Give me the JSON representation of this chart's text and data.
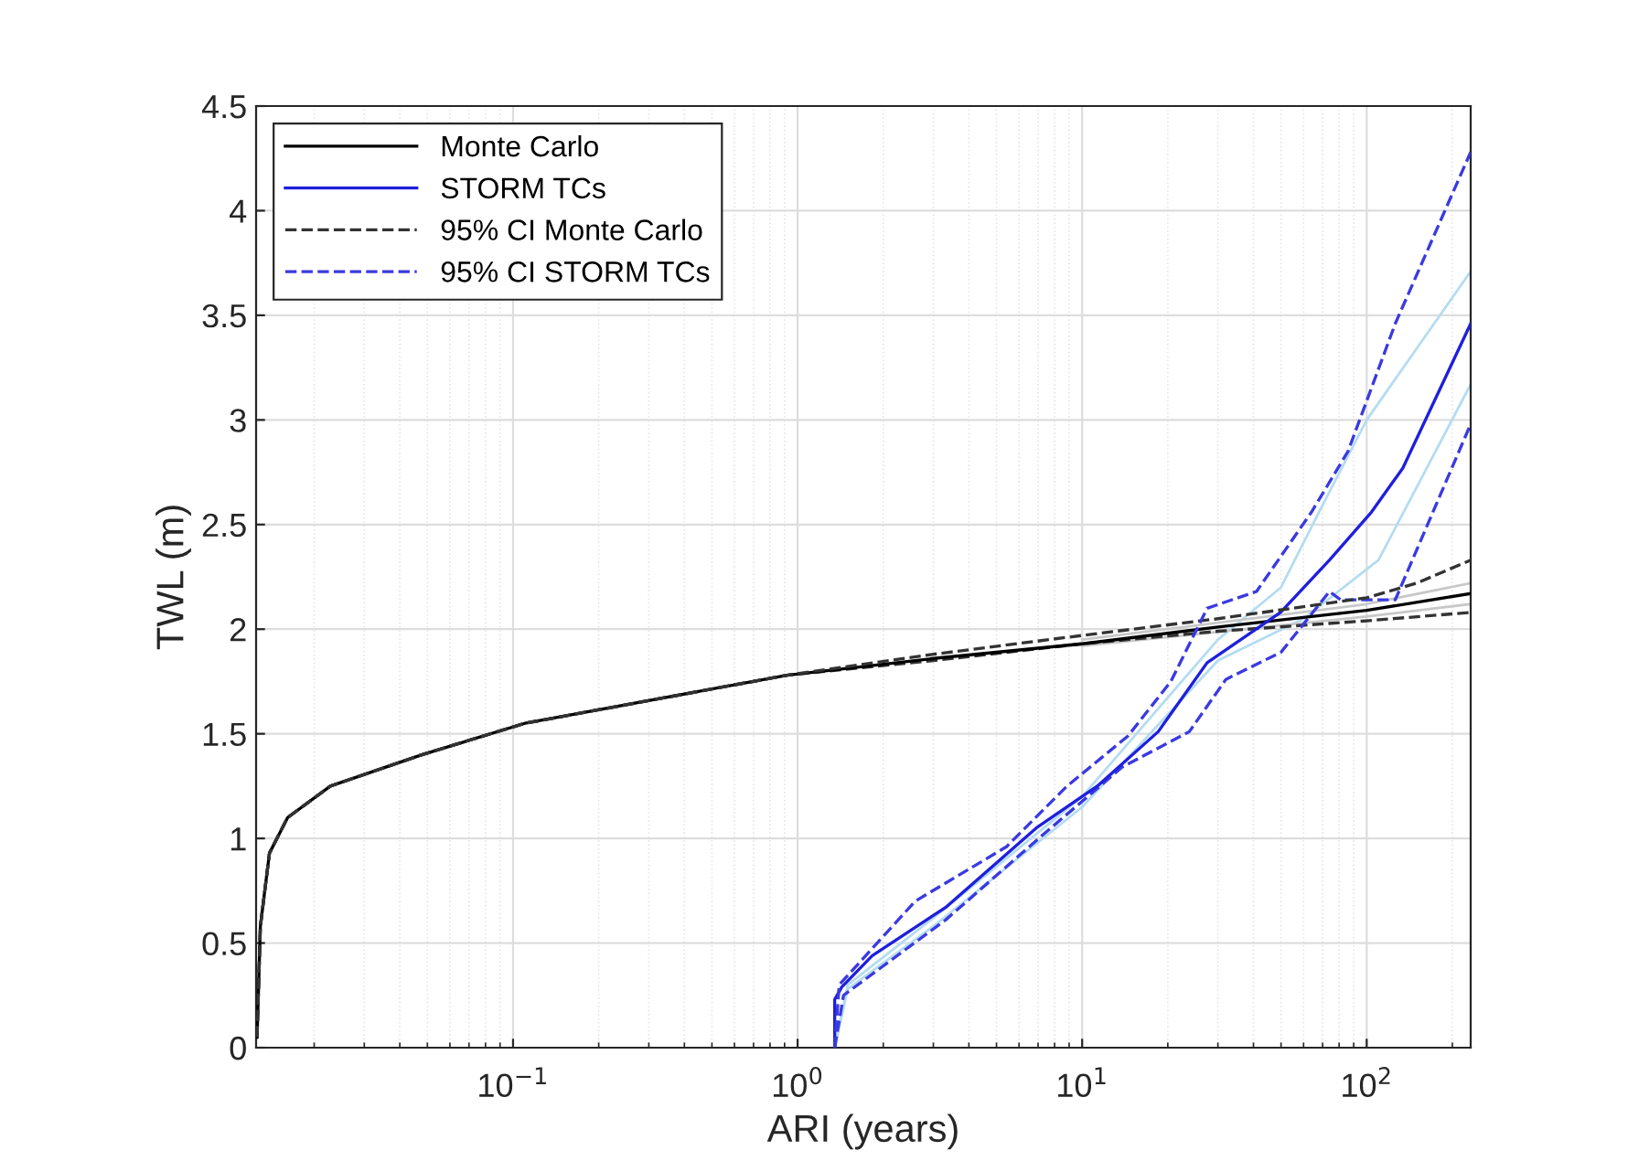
{
  "chart_data": {
    "type": "line",
    "xlabel": "ARI (years)",
    "ylabel": "TWL (m)",
    "log": "x",
    "grid": true,
    "legend": "top left",
    "xlim": [
      0.0125,
      232
    ],
    "xticks": [
      {
        "value": 0.1,
        "label": "10$^{−1}$"
      },
      {
        "value": 1,
        "label": "10$^{0}$"
      },
      {
        "value": 10,
        "label": "10$^{1}$"
      },
      {
        "value": 100,
        "label": "10$^{2}$"
      }
    ],
    "ylim": [
      0,
      4.5
    ],
    "yticks": [
      0,
      0.5,
      1,
      1.5,
      2,
      2.5,
      3,
      3.5,
      4,
      4.5
    ],
    "series": [
      {
        "color": "#b4dcf2",
        "line_style": "solid",
        "x": [
          1.35,
          1.5,
          3,
          10,
          30,
          50,
          68,
          100,
          232
        ],
        "values": [
          0,
          0.3,
          0.62,
          1.2,
          1.95,
          2.2,
          2.56,
          3.0,
          3.71
        ]
      },
      {
        "color": "#b4dcf2",
        "line_style": "solid",
        "x": [
          1.35,
          1.5,
          3,
          10,
          30,
          60,
          110,
          232
        ],
        "values": [
          0,
          0.28,
          0.58,
          1.15,
          1.85,
          2.05,
          2.33,
          3.17
        ]
      },
      {
        "color": "#c8c8c8",
        "line_style": "solid",
        "x": [
          10,
          100,
          232
        ],
        "values": [
          1.95,
          2.12,
          2.22
        ]
      },
      {
        "color": "#c8c8c8",
        "line_style": "solid",
        "x": [
          10,
          100,
          232
        ],
        "values": [
          1.92,
          2.06,
          2.12
        ]
      },
      {
        "name": "Monte Carlo",
        "color": "#000000",
        "line_style": "solid",
        "x": [
          0.0126,
          0.01294,
          0.01393,
          0.01614,
          0.0228,
          0.0478,
          0.11,
          0.918,
          3,
          10,
          30,
          100,
          232
        ],
        "values": [
          0.05,
          0.58,
          0.93,
          1.1,
          1.25,
          1.4,
          1.55,
          1.78,
          1.86,
          1.93,
          2.01,
          2.09,
          2.17
        ]
      },
      {
        "name": "STORM TCs",
        "color": "#1f1fdc",
        "line_style": "solid",
        "x": [
          1.35,
          1.35,
          1.43,
          1.83,
          3.31,
          6.9,
          11.3,
          18.5,
          27.5,
          49.8,
          74,
          104,
          134,
          232
        ],
        "values": [
          0,
          0.23,
          0.29,
          0.44,
          0.67,
          1.05,
          1.25,
          1.51,
          1.84,
          2.08,
          2.33,
          2.56,
          2.77,
          3.46
        ]
      },
      {
        "name": "95% CI Monte Carlo",
        "color": "#333333",
        "line_style": "dashed",
        "x": [
          0.0126,
          0.01294,
          0.01393,
          0.01614,
          0.0228,
          0.0478,
          0.11,
          0.918,
          3,
          10,
          30,
          100,
          150,
          232
        ],
        "values": [
          0.05,
          0.58,
          0.93,
          1.1,
          1.25,
          1.4,
          1.55,
          1.78,
          1.88,
          1.97,
          2.05,
          2.15,
          2.22,
          2.33
        ]
      },
      {
        "color": "#333333",
        "line_style": "dashed",
        "x": [
          0.0126,
          0.01294,
          0.01393,
          0.01614,
          0.0228,
          0.0478,
          0.11,
          0.918,
          3,
          10,
          30,
          100,
          232
        ],
        "values": [
          0.05,
          0.58,
          0.93,
          1.1,
          1.25,
          1.4,
          1.55,
          1.78,
          1.85,
          1.93,
          1.99,
          2.04,
          2.08
        ]
      },
      {
        "name": "95% CI STORM TCs",
        "color": "#3a3ae0",
        "line_style": "dashed",
        "x": [
          1.35,
          1.4,
          2.59,
          5.42,
          8.85,
          14.5,
          20.5,
          27.5,
          41,
          64,
          86,
          126,
          232
        ],
        "values": [
          0,
          0.3,
          0.7,
          0.96,
          1.25,
          1.49,
          1.75,
          2.1,
          2.18,
          2.56,
          2.85,
          3.46,
          4.28
        ]
      },
      {
        "color": "#3a3ae0",
        "line_style": "dashed",
        "x": [
          1.35,
          1.45,
          3.31,
          6.9,
          13.8,
          23.8,
          32,
          50,
          74,
          81,
          126,
          232
        ],
        "values": [
          0,
          0.25,
          0.61,
          0.99,
          1.34,
          1.51,
          1.76,
          1.89,
          2.18,
          2.14,
          2.14,
          2.98
        ]
      }
    ]
  }
}
